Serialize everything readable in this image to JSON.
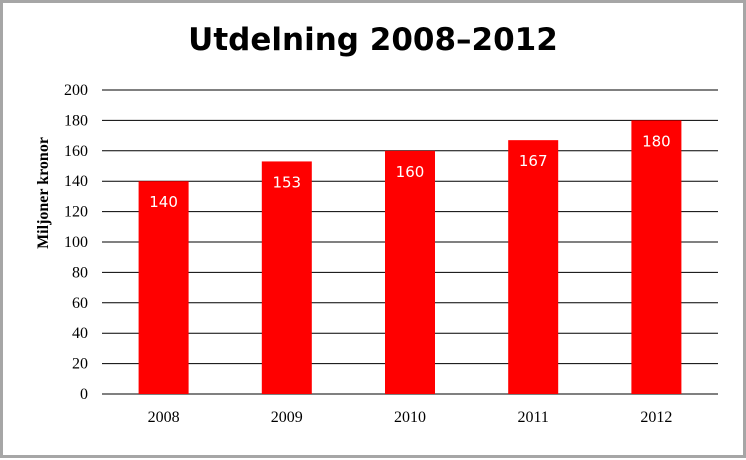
{
  "chart_data": {
    "type": "bar",
    "title": "Utdelning 2008–2012",
    "ylabel": "Miljoner kronor",
    "xlabel": "",
    "categories": [
      "2008",
      "2009",
      "2010",
      "2011",
      "2012"
    ],
    "values": [
      140,
      153,
      160,
      167,
      180
    ],
    "data_labels": [
      "140",
      "153",
      "160",
      "167",
      "180"
    ],
    "ylim": [
      0,
      200
    ],
    "yticks": [
      0,
      20,
      40,
      60,
      80,
      100,
      120,
      140,
      160,
      180,
      200
    ],
    "ytick_labels": [
      "0",
      "20",
      "40",
      "60",
      "80",
      "100",
      "120",
      "140",
      "160",
      "180",
      "200"
    ],
    "grid": true,
    "legend": "none",
    "bar_color": "#ff0000"
  }
}
